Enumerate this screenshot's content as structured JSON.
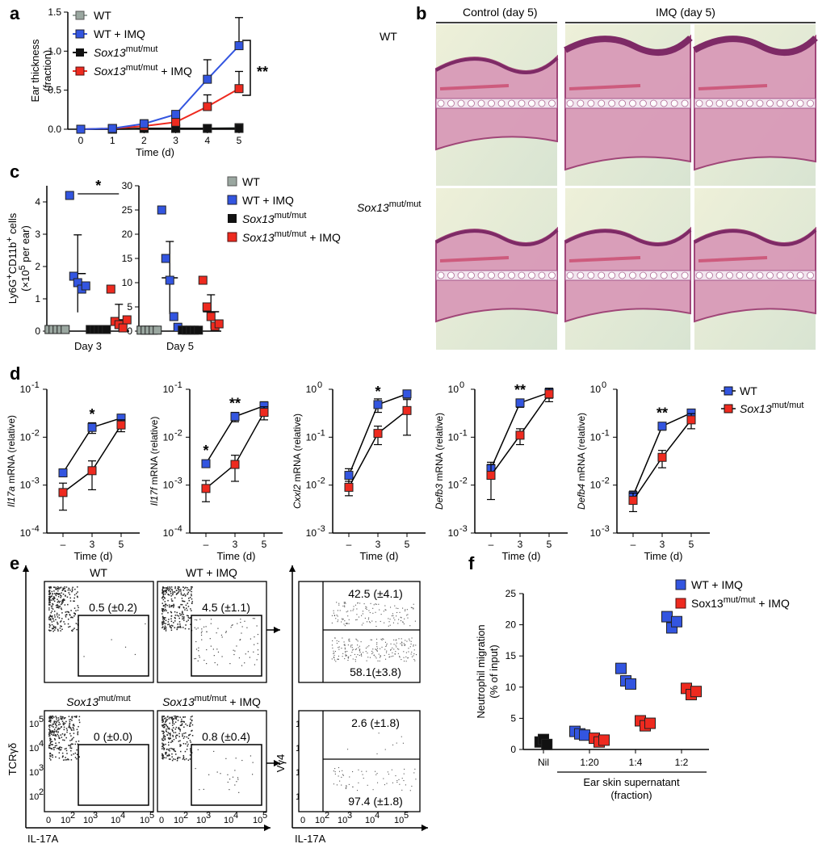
{
  "panels": {
    "a": "a",
    "b": "b",
    "c": "c",
    "d": "d",
    "e": "e",
    "f": "f"
  },
  "colors": {
    "wt": "#9aa7a0",
    "wt_imq": "#3355e0",
    "mut": "#111111",
    "mut_imq": "#ee2a1f"
  },
  "legend_a": {
    "wt": "WT",
    "wt_imq": "WT + IMQ",
    "mut": "Sox13",
    "mut_sup": "mut/mut",
    "mut_imq": "Sox13",
    "mut_imq_sup": "mut/mut",
    "mut_imq_tail": " + IMQ"
  },
  "legend_d": {
    "wt": "WT",
    "mut": "Sox13",
    "mut_sup": "mut/mut"
  },
  "legend_f": {
    "wt_imq": "WT + IMQ",
    "mut_imq": "Sox13",
    "mut_imq_sup": "mut/mut",
    "mut_imq_tail": " + IMQ"
  },
  "histology": {
    "col1": "Control (day 5)",
    "col2": "IMQ (day 5)",
    "row1": "WT",
    "row2": "Sox13",
    "row2_sup": "mut/mut"
  },
  "flow": {
    "titles": [
      "WT",
      "WT + IMQ",
      "Sox13",
      "Sox13"
    ],
    "title3_sup": "mut/mut",
    "title4_sup": "mut/mut",
    "title4_tail": " + IMQ",
    "gates": [
      "0.5 (±0.2)",
      "4.5 (±1.1)",
      "0 (±0.0)",
      "0.8 (±0.4)"
    ],
    "quad": [
      "42.5 (±4.1)",
      "58.1(±3.8)",
      "2.6 (±1.8)",
      "97.4 (±1.8)"
    ],
    "ylabel": "TCRγδ",
    "xlabel": "IL-17A",
    "ylabel2": "Vγ4",
    "xlabel2": "IL-17A",
    "xticks": [
      "0",
      "10",
      "10",
      "10",
      "10"
    ],
    "xtick_exp": [
      "",
      "2",
      "3",
      "4",
      "5"
    ],
    "yticks_exp": [
      "2",
      "3",
      "4",
      "5"
    ]
  },
  "chart_data": [
    {
      "type": "line",
      "xlabel": "Time (d)",
      "ylabel": "Ear thickness (fraction)",
      "x": [
        0,
        1,
        2,
        3,
        4,
        5
      ],
      "ylim": [
        0,
        1.5
      ],
      "yticks": [
        "0.0",
        "0.5",
        "1.0",
        "1.5"
      ],
      "series": [
        {
          "name": "WT",
          "values": [
            0,
            0,
            0.01,
            0.01,
            0.01,
            0.02
          ],
          "err": [
            0,
            0,
            0.01,
            0.01,
            0.01,
            0.02
          ]
        },
        {
          "name": "WT + IMQ",
          "values": [
            0,
            0.01,
            0.07,
            0.19,
            0.64,
            1.07
          ],
          "err": [
            0,
            0.01,
            0.05,
            0.03,
            0.25,
            0.36
          ]
        },
        {
          "name": "Sox13mut/mut",
          "values": [
            0,
            0,
            0.01,
            0.01,
            0.01,
            0.01
          ],
          "err": [
            0,
            0,
            0,
            0,
            0,
            0
          ]
        },
        {
          "name": "Sox13mut/mut + IMQ",
          "values": [
            0,
            0.01,
            0.04,
            0.09,
            0.29,
            0.52
          ],
          "err": [
            0,
            0.01,
            0.04,
            0.05,
            0.15,
            0.22
          ]
        }
      ],
      "significance": "**"
    },
    {
      "type": "scatter",
      "ylabel": "Ly6G+CD11b+ cells (×10^5 per ear)",
      "ylabel_main": "Ly6G",
      "ylabel_sup1": "+",
      "ylabel_mid": "CD11b",
      "ylabel_sup2": "+",
      "ylabel_tail": " cells",
      "ylabel2": "(×10",
      "ylabel2_sup": "5",
      "ylabel2_tail": " per ear)",
      "panels": [
        {
          "label": "Day 3",
          "ylim": [
            0,
            4.5
          ],
          "yticks": [
            "0",
            "1",
            "2",
            "3",
            "4"
          ],
          "groups": [
            {
              "name": "WT",
              "points": [
                0.05,
                0.05,
                0.05,
                0.05,
                0.05
              ],
              "mean": 0.05,
              "sd": 0.03
            },
            {
              "name": "WT + IMQ",
              "points": [
                4.2,
                1.7,
                1.5,
                1.3,
                1.4
              ],
              "mean": 1.78,
              "sd": 1.2
            },
            {
              "name": "Sox13mut/mut",
              "points": [
                0.05,
                0.05,
                0.05,
                0.05,
                0.05
              ],
              "mean": 0.05,
              "sd": 0.02
            },
            {
              "name": "Sox13mut/mut + IMQ",
              "points": [
                1.3,
                0.3,
                0.2,
                0.1,
                0.35
              ],
              "mean": 0.35,
              "sd": 0.48
            }
          ],
          "significance": "*"
        },
        {
          "label": "Day 5",
          "ylim": [
            0,
            30
          ],
          "yticks": [
            "0",
            "5",
            "10",
            "15",
            "20",
            "25",
            "30"
          ],
          "groups": [
            {
              "name": "WT",
              "points": [
                0.2,
                0.2,
                0.2,
                0.2,
                0.2
              ],
              "mean": 0.2,
              "sd": 0.1
            },
            {
              "name": "WT + IMQ",
              "points": [
                25,
                15,
                10.5,
                3,
                0.8
              ],
              "mean": 11,
              "sd": 7.5
            },
            {
              "name": "Sox13mut/mut",
              "points": [
                0.2,
                0.2,
                0.2,
                0.2,
                0.2
              ],
              "mean": 0.2,
              "sd": 0.1
            },
            {
              "name": "Sox13mut/mut + IMQ",
              "points": [
                10.5,
                5,
                3,
                1,
                1.5
              ],
              "mean": 4,
              "sd": 3.5
            }
          ]
        }
      ],
      "legend": [
        "WT",
        "WT + IMQ",
        "Sox13mut/mut",
        "Sox13mut/mut + IMQ"
      ]
    },
    {
      "type": "line",
      "xlabel": "Time (d)",
      "x": [
        "–",
        "3",
        "5"
      ],
      "log_scale": true,
      "plots": [
        {
          "gene": "Il17a",
          "ylabel_tail": " mRNA (relative)",
          "ymin_exp": -4,
          "ymax_exp": -1,
          "wt": [
            0.0018,
            0.016,
            0.025
          ],
          "wt_err": [
            0.0003,
            0.004,
            0.005
          ],
          "mut": [
            0.0007,
            0.002,
            0.018
          ],
          "mut_err": [
            0.0004,
            0.0012,
            0.005
          ],
          "sig": [
            "",
            "*",
            ""
          ]
        },
        {
          "gene": "Il17f",
          "ylabel_tail": " mRNA (relative)",
          "ymin_exp": -4,
          "ymax_exp": -1,
          "wt": [
            0.0028,
            0.027,
            0.045
          ],
          "wt_err": [
            0.0004,
            0.006,
            0.01
          ],
          "mut": [
            0.00085,
            0.0027,
            0.033
          ],
          "mut_err": [
            0.0004,
            0.0015,
            0.01
          ],
          "sig": [
            "*",
            "**",
            ""
          ]
        },
        {
          "gene": "Cxxl2",
          "ylabel_tail": " mRNA (relative)",
          "ymin_exp": -3,
          "ymax_exp": 0,
          "wt": [
            0.016,
            0.48,
            0.8
          ],
          "wt_err": [
            0.006,
            0.15,
            0.15
          ],
          "mut": [
            0.009,
            0.12,
            0.36
          ],
          "mut_err": [
            0.003,
            0.05,
            0.25
          ],
          "sig": [
            "",
            "*",
            ""
          ]
        },
        {
          "gene": "Defb3",
          "ylabel_tail": " mRNA (relative)",
          "ymin_exp": -3,
          "ymax_exp": 0,
          "wt": [
            0.022,
            0.52,
            0.85
          ],
          "wt_err": [
            0.008,
            0.1,
            0.2
          ],
          "mut": [
            0.016,
            0.11,
            0.8
          ],
          "mut_err": [
            0.011,
            0.04,
            0.25
          ],
          "sig": [
            "",
            "**",
            ""
          ]
        },
        {
          "gene": "Defb4",
          "ylabel_tail": " mRNA (relative)",
          "ymin_exp": -3,
          "ymax_exp": 0,
          "wt": [
            0.006,
            0.17,
            0.32
          ],
          "wt_err": [
            0.0015,
            0.03,
            0.06
          ],
          "mut": [
            0.0048,
            0.038,
            0.23
          ],
          "mut_err": [
            0.002,
            0.015,
            0.08
          ],
          "sig": [
            "",
            "**",
            ""
          ]
        }
      ]
    },
    {
      "type": "scatter",
      "ylabel": "Neutrophil migration (% of input)",
      "ylabel1": "Neutrophil migration",
      "ylabel2": "(% of input)",
      "xlabel": "Ear skin supernatant",
      "xlabel2": "(fraction)",
      "categories": [
        "Nil",
        "1:20",
        "1:4",
        "1:2"
      ],
      "ylim": [
        0,
        25
      ],
      "yticks": [
        "0",
        "5",
        "10",
        "15",
        "20",
        "25"
      ],
      "series": [
        {
          "name": "Nil",
          "points": [
            [
              0,
              1.2
            ],
            [
              0,
              1.6
            ],
            [
              0,
              0.8
            ]
          ]
        },
        {
          "name": "WT + IMQ",
          "points": [
            [
              1,
              2.9
            ],
            [
              1,
              2.5
            ],
            [
              1,
              2.3
            ],
            [
              2,
              13
            ],
            [
              2,
              11
            ],
            [
              2,
              10.5
            ],
            [
              3,
              21.3
            ],
            [
              3,
              19.5
            ],
            [
              3,
              20.5
            ]
          ]
        },
        {
          "name": "Sox13mut/mut + IMQ",
          "points": [
            [
              1,
              1.8
            ],
            [
              1,
              1.2
            ],
            [
              1,
              1.5
            ],
            [
              2,
              4.6
            ],
            [
              2,
              3.8
            ],
            [
              2,
              4.2
            ],
            [
              3,
              9.8
            ],
            [
              3,
              8.8
            ],
            [
              3,
              9.3
            ]
          ]
        }
      ]
    }
  ]
}
